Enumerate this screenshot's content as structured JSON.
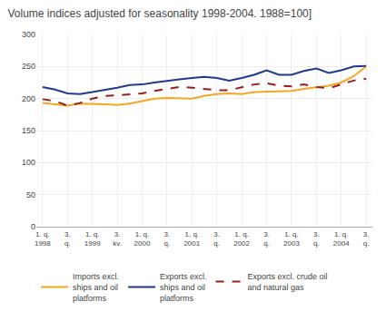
{
  "chart_data": {
    "type": "line",
    "title": "Volume indices adjusted for seasonality 1998-2004. 1988=100]",
    "categories": [
      "1. q.\n1998",
      null,
      "3.\nq.",
      null,
      "1. q.\n1999",
      null,
      "3.\nkv.",
      null,
      "1. q.\n2000",
      null,
      "3.\nq.",
      null,
      "1. q.\n2001",
      null,
      "3.\nq.",
      null,
      "1. q.\n2002",
      null,
      "3.\nq.",
      null,
      "1. q.\n2003",
      null,
      "3.\nq.",
      null,
      "1. q.\n2004",
      null,
      "3.\nq."
    ],
    "series": [
      {
        "name": "Imports excl.\nships and oil\nplatforms",
        "color": "#F5A623",
        "line_style": "solid",
        "values": [
          193,
          191,
          189,
          192,
          192,
          191,
          190,
          192,
          196,
          200,
          201,
          200,
          200,
          204,
          207,
          208,
          207,
          210,
          211,
          212,
          212,
          215,
          217,
          220,
          225,
          235,
          250
        ]
      },
      {
        "name": "Exports excl.\nships and oil\nplatforms",
        "color": "#1F3A8C",
        "line_style": "solid",
        "values": [
          218,
          214,
          208,
          207,
          210,
          213,
          217,
          221,
          222,
          225,
          228,
          230,
          232,
          234,
          232,
          228,
          232,
          237,
          244,
          237,
          237,
          243,
          247,
          240,
          244,
          250,
          251
        ]
      },
      {
        "name": "Exports excl. crude oil\nand natural gas",
        "color": "#9B1C1C",
        "line_style": "dashed",
        "values": [
          199,
          196,
          189,
          193,
          200,
          204,
          205,
          206,
          208,
          212,
          215,
          218,
          217,
          215,
          213,
          213,
          218,
          222,
          224,
          220,
          219,
          222,
          218,
          216,
          222,
          228,
          231
        ]
      }
    ],
    "ylim": [
      0,
      300
    ],
    "yticks": [
      0,
      50,
      100,
      150,
      200,
      250,
      300
    ],
    "grid": true,
    "legend": "bottom"
  }
}
